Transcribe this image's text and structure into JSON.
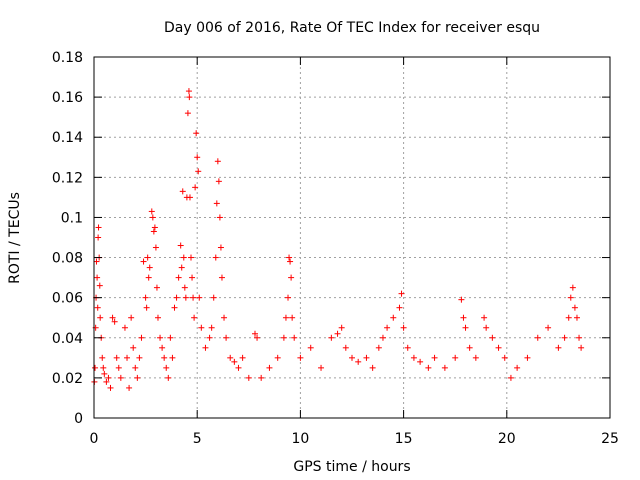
{
  "chart_data": {
    "type": "scatter",
    "title": "Day 006 of 2016, Rate Of TEC Index for receiver esqu",
    "xlabel": "GPS time / hours",
    "ylabel": "ROTI / TECUs",
    "xlim": [
      0,
      25
    ],
    "ylim": [
      0,
      0.18
    ],
    "x_ticks": [
      "0",
      "5",
      "10",
      "15",
      "20",
      "25"
    ],
    "y_ticks": [
      "0",
      "0.02",
      "0.04",
      "0.06",
      "0.08",
      "0.1",
      "0.12",
      "0.14",
      "0.16",
      "0.18"
    ],
    "grid": true,
    "marker": "+",
    "color": "#ff0000",
    "series": [
      {
        "name": "ROTI",
        "points": [
          [
            0.02,
            0.018
          ],
          [
            0.05,
            0.025
          ],
          [
            0.08,
            0.045
          ],
          [
            0.1,
            0.06
          ],
          [
            0.12,
            0.078
          ],
          [
            0.15,
            0.07
          ],
          [
            0.18,
            0.055
          ],
          [
            0.2,
            0.09
          ],
          [
            0.22,
            0.095
          ],
          [
            0.25,
            0.08
          ],
          [
            0.28,
            0.066
          ],
          [
            0.3,
            0.05
          ],
          [
            0.35,
            0.04
          ],
          [
            0.4,
            0.03
          ],
          [
            0.45,
            0.025
          ],
          [
            0.5,
            0.022
          ],
          [
            0.6,
            0.018
          ],
          [
            0.7,
            0.02
          ],
          [
            0.8,
            0.015
          ],
          [
            0.9,
            0.05
          ],
          [
            1.0,
            0.048
          ],
          [
            1.1,
            0.03
          ],
          [
            1.2,
            0.025
          ],
          [
            1.3,
            0.02
          ],
          [
            1.5,
            0.045
          ],
          [
            1.6,
            0.03
          ],
          [
            1.7,
            0.015
          ],
          [
            1.8,
            0.05
          ],
          [
            1.9,
            0.035
          ],
          [
            2.0,
            0.025
          ],
          [
            2.1,
            0.02
          ],
          [
            2.2,
            0.03
          ],
          [
            2.3,
            0.04
          ],
          [
            2.4,
            0.078
          ],
          [
            2.5,
            0.06
          ],
          [
            2.55,
            0.055
          ],
          [
            2.6,
            0.08
          ],
          [
            2.65,
            0.07
          ],
          [
            2.7,
            0.075
          ],
          [
            2.8,
            0.103
          ],
          [
            2.85,
            0.1
          ],
          [
            2.9,
            0.093
          ],
          [
            2.95,
            0.095
          ],
          [
            3.0,
            0.085
          ],
          [
            3.05,
            0.065
          ],
          [
            3.1,
            0.05
          ],
          [
            3.2,
            0.04
          ],
          [
            3.3,
            0.035
          ],
          [
            3.4,
            0.03
          ],
          [
            3.5,
            0.025
          ],
          [
            3.6,
            0.02
          ],
          [
            3.7,
            0.04
          ],
          [
            3.8,
            0.03
          ],
          [
            3.9,
            0.055
          ],
          [
            4.0,
            0.06
          ],
          [
            4.1,
            0.07
          ],
          [
            4.2,
            0.086
          ],
          [
            4.25,
            0.075
          ],
          [
            4.3,
            0.113
          ],
          [
            4.35,
            0.08
          ],
          [
            4.4,
            0.065
          ],
          [
            4.45,
            0.06
          ],
          [
            4.5,
            0.11
          ],
          [
            4.55,
            0.152
          ],
          [
            4.6,
            0.163
          ],
          [
            4.62,
            0.16
          ],
          [
            4.65,
            0.11
          ],
          [
            4.7,
            0.08
          ],
          [
            4.75,
            0.07
          ],
          [
            4.8,
            0.06
          ],
          [
            4.85,
            0.05
          ],
          [
            4.9,
            0.115
          ],
          [
            4.95,
            0.142
          ],
          [
            5.0,
            0.13
          ],
          [
            5.05,
            0.123
          ],
          [
            5.1,
            0.06
          ],
          [
            5.2,
            0.045
          ],
          [
            5.4,
            0.035
          ],
          [
            5.6,
            0.04
          ],
          [
            5.7,
            0.045
          ],
          [
            5.8,
            0.06
          ],
          [
            5.9,
            0.08
          ],
          [
            5.95,
            0.107
          ],
          [
            6.0,
            0.128
          ],
          [
            6.05,
            0.118
          ],
          [
            6.1,
            0.1
          ],
          [
            6.15,
            0.085
          ],
          [
            6.2,
            0.07
          ],
          [
            6.3,
            0.05
          ],
          [
            6.4,
            0.04
          ],
          [
            6.6,
            0.03
          ],
          [
            6.8,
            0.028
          ],
          [
            7.0,
            0.025
          ],
          [
            7.2,
            0.03
          ],
          [
            7.5,
            0.02
          ],
          [
            7.8,
            0.042
          ],
          [
            7.9,
            0.04
          ],
          [
            8.1,
            0.02
          ],
          [
            8.5,
            0.025
          ],
          [
            8.9,
            0.03
          ],
          [
            9.2,
            0.04
          ],
          [
            9.3,
            0.05
          ],
          [
            9.4,
            0.06
          ],
          [
            9.45,
            0.08
          ],
          [
            9.5,
            0.078
          ],
          [
            9.55,
            0.07
          ],
          [
            9.6,
            0.05
          ],
          [
            9.7,
            0.04
          ],
          [
            10.0,
            0.03
          ],
          [
            10.5,
            0.035
          ],
          [
            11.0,
            0.025
          ],
          [
            11.5,
            0.04
          ],
          [
            11.8,
            0.042
          ],
          [
            12.0,
            0.045
          ],
          [
            12.2,
            0.035
          ],
          [
            12.5,
            0.03
          ],
          [
            12.8,
            0.028
          ],
          [
            13.2,
            0.03
          ],
          [
            13.5,
            0.025
          ],
          [
            13.8,
            0.035
          ],
          [
            14.0,
            0.04
          ],
          [
            14.2,
            0.045
          ],
          [
            14.5,
            0.05
          ],
          [
            14.8,
            0.055
          ],
          [
            14.9,
            0.062
          ],
          [
            15.0,
            0.045
          ],
          [
            15.2,
            0.035
          ],
          [
            15.5,
            0.03
          ],
          [
            15.8,
            0.028
          ],
          [
            16.2,
            0.025
          ],
          [
            16.5,
            0.03
          ],
          [
            17.0,
            0.025
          ],
          [
            17.5,
            0.03
          ],
          [
            17.8,
            0.059
          ],
          [
            17.9,
            0.05
          ],
          [
            18.0,
            0.045
          ],
          [
            18.2,
            0.035
          ],
          [
            18.5,
            0.03
          ],
          [
            18.9,
            0.05
          ],
          [
            19.0,
            0.045
          ],
          [
            19.3,
            0.04
          ],
          [
            19.6,
            0.035
          ],
          [
            19.9,
            0.03
          ],
          [
            20.2,
            0.02
          ],
          [
            20.5,
            0.025
          ],
          [
            21.0,
            0.03
          ],
          [
            21.5,
            0.04
          ],
          [
            22.0,
            0.045
          ],
          [
            22.5,
            0.035
          ],
          [
            22.8,
            0.04
          ],
          [
            23.0,
            0.05
          ],
          [
            23.1,
            0.06
          ],
          [
            23.2,
            0.065
          ],
          [
            23.3,
            0.055
          ],
          [
            23.4,
            0.05
          ],
          [
            23.5,
            0.04
          ],
          [
            23.6,
            0.035
          ]
        ]
      }
    ]
  }
}
